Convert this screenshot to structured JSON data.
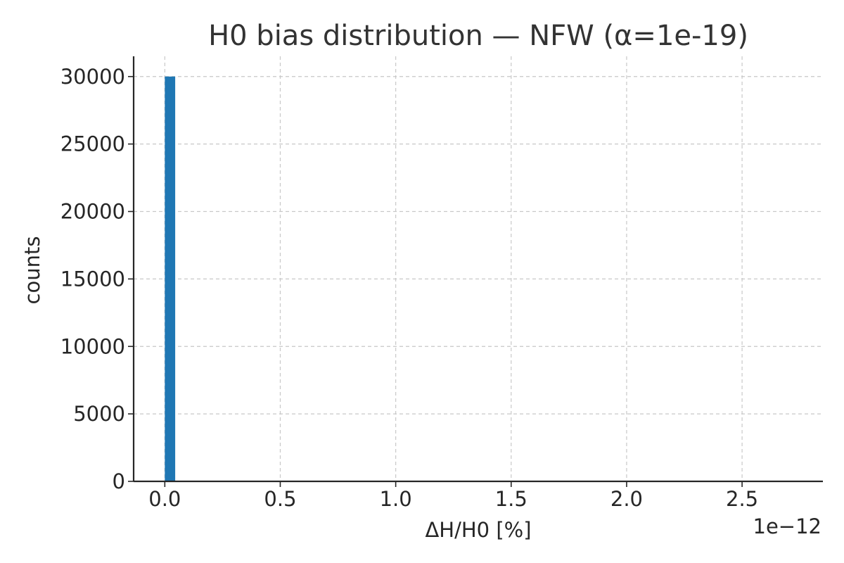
{
  "chart_data": {
    "type": "bar",
    "title": "H0 bias distribution — NFW (α=1e-19)",
    "xlabel": "ΔH/H0 [%]",
    "ylabel": "counts",
    "x_offset_label": "1e−12",
    "x_scale_factor": 1e-12,
    "xlim": [
      -0.135,
      2.85
    ],
    "ylim": [
      0,
      31500
    ],
    "x_ticks": [
      0.0,
      0.5,
      1.0,
      1.5,
      2.0,
      2.5
    ],
    "x_tick_labels": [
      "0.0",
      "0.5",
      "1.0",
      "1.5",
      "2.0",
      "2.5"
    ],
    "y_ticks": [
      0,
      5000,
      10000,
      15000,
      20000,
      25000,
      30000
    ],
    "y_tick_labels": [
      "0",
      "5000",
      "10000",
      "15000",
      "20000",
      "25000",
      "30000"
    ],
    "grid": true,
    "bars": [
      {
        "x_start": 0.0,
        "x_end": 0.045,
        "value": 30000
      }
    ],
    "bar_color": "#1f77b4"
  }
}
